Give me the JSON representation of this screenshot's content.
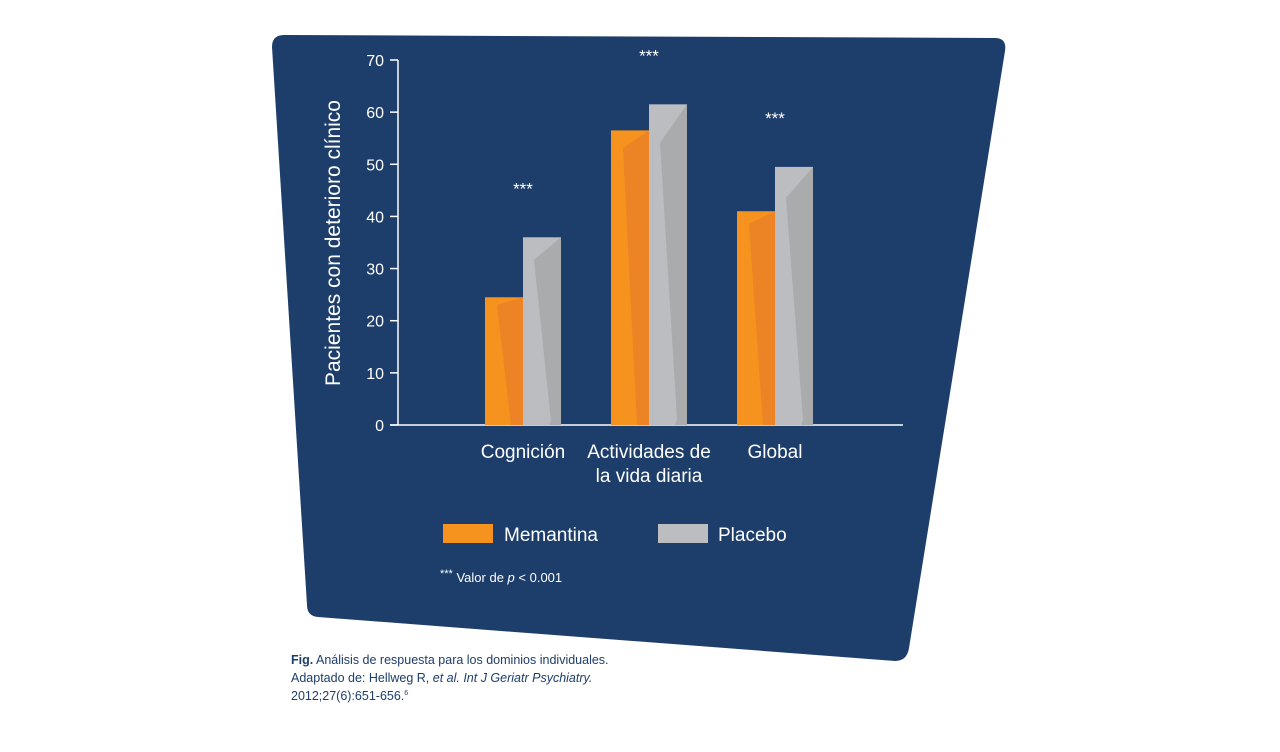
{
  "chart_data": {
    "type": "bar",
    "ylabel": "Pacientes con deterioro clínico",
    "ylim": [
      0,
      70
    ],
    "yticks": [
      0,
      10,
      20,
      30,
      40,
      50,
      60,
      70
    ],
    "categories": [
      {
        "line1": "Cognición",
        "line2": ""
      },
      {
        "line1": "Actividades de",
        "line2": "la vida diaria"
      },
      {
        "line1": "Global",
        "line2": ""
      }
    ],
    "series": [
      {
        "name": "Memantina",
        "values": [
          24.5,
          56.5,
          41
        ],
        "color": "#f6921e",
        "shade": "#eb8225"
      },
      {
        "name": "Placebo",
        "values": [
          36,
          61.5,
          49.5
        ],
        "color": "#bcbdc0",
        "shade": "#a7a8ab"
      }
    ],
    "significance": [
      "***",
      "***",
      "***"
    ],
    "footnote": {
      "stars": "***",
      "text_a": "Valor de ",
      "p": "p",
      "text_b": " < 0.001"
    },
    "panel_color": "#1d3d6b",
    "legend_position": "bottom"
  },
  "caption": {
    "label": "Fig.",
    "line1": " Análisis de respuesta para los dominios individuales.",
    "line2_a": "Adaptado de: Hellweg R, ",
    "line2_italic": "et al. Int J Geriatr Psychiatry.",
    "line3": "2012;27(6):651-656.",
    "ref": "6"
  }
}
